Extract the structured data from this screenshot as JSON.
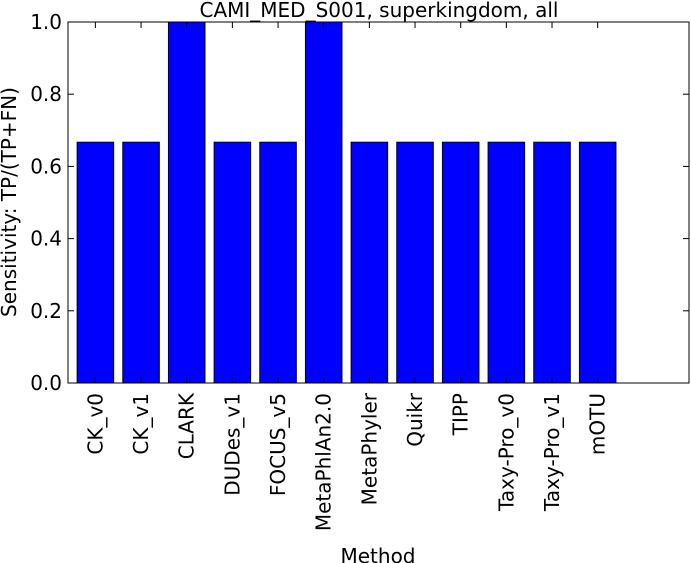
{
  "chart_data": {
    "type": "bar",
    "title": "CAMI_MED_S001, superkingdom, all",
    "xlabel": "Method",
    "ylabel": "Sensitivity: TP/(TP+FN)",
    "categories": [
      "CK_v0",
      "CK_v1",
      "CLARK",
      "DUDes_v1",
      "FOCUS_v5",
      "MetaPhlAn2.0",
      "MetaPhyler",
      "Quikr",
      "TIPP",
      "Taxy-Pro_v0",
      "Taxy-Pro_v1",
      "mOTU"
    ],
    "values": [
      0.667,
      0.667,
      1.0,
      0.667,
      0.667,
      1.0,
      0.667,
      0.667,
      0.667,
      0.667,
      0.667,
      0.667
    ],
    "ylim": [
      0,
      1.0
    ],
    "yticks": [
      "0.0",
      "0.2",
      "0.4",
      "0.6",
      "0.8",
      "1.0"
    ],
    "bar_color": "#0000ff",
    "grid": false,
    "legend": "none"
  }
}
